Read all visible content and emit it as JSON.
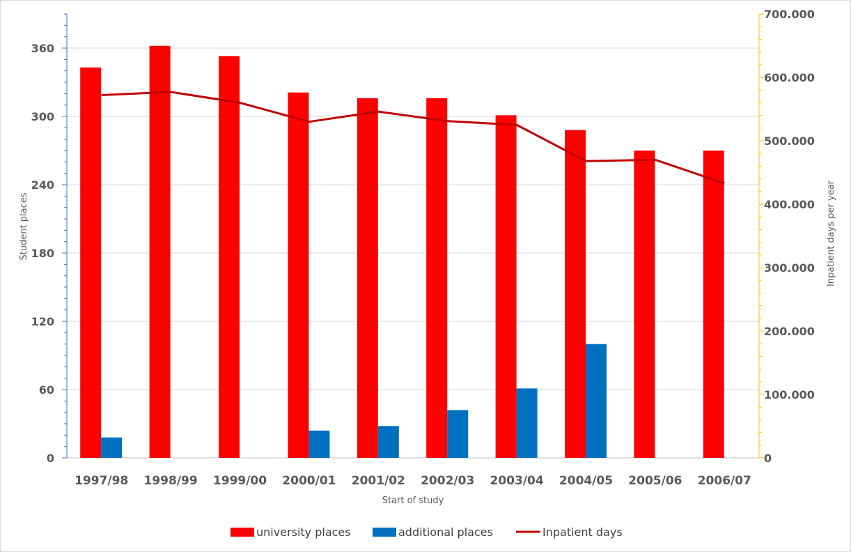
{
  "chart_data": {
    "type": "bar",
    "categories": [
      "1997/98",
      "1998/99",
      "1999/00",
      "2000/01",
      "2001/02",
      "2002/03",
      "2003/04",
      "2004/05",
      "2005/06",
      "2006/07"
    ],
    "series": [
      {
        "name": "university places",
        "kind": "bar",
        "axis": "left",
        "color": "#FF0000",
        "values": [
          343,
          362,
          353,
          321,
          316,
          316,
          301,
          288,
          270,
          270
        ]
      },
      {
        "name": "additional places",
        "kind": "bar",
        "axis": "left",
        "color": "#0070C0",
        "values": [
          18,
          null,
          null,
          24,
          28,
          42,
          61,
          100,
          null,
          null
        ]
      },
      {
        "name": "Inpatient days",
        "kind": "line",
        "axis": "right",
        "color": "#C00000",
        "values": [
          572000,
          577000,
          560000,
          530000,
          546000,
          531000,
          525000,
          468000,
          470000,
          433000
        ]
      }
    ],
    "xlabel": "Start of study",
    "ylabel": "Student places",
    "y2label": "Inpatient days per year",
    "ylim": [
      0,
      390
    ],
    "y2lim": [
      0,
      700000
    ],
    "yticks": [
      "0",
      "60",
      "120",
      "180",
      "240",
      "300",
      "360"
    ],
    "yticks_values": [
      0,
      60,
      120,
      180,
      240,
      300,
      360
    ],
    "y2ticks": [
      "0",
      "100.000",
      "200.000",
      "300.000",
      "400.000",
      "500.000",
      "600.000",
      "700.000"
    ],
    "y2ticks_values": [
      0,
      100000,
      200000,
      300000,
      400000,
      500000,
      600000,
      700000
    ],
    "grid": true,
    "legend_position": "bottom",
    "left_axis_color": "#4472C4",
    "right_axis_color": "#FFC000"
  }
}
